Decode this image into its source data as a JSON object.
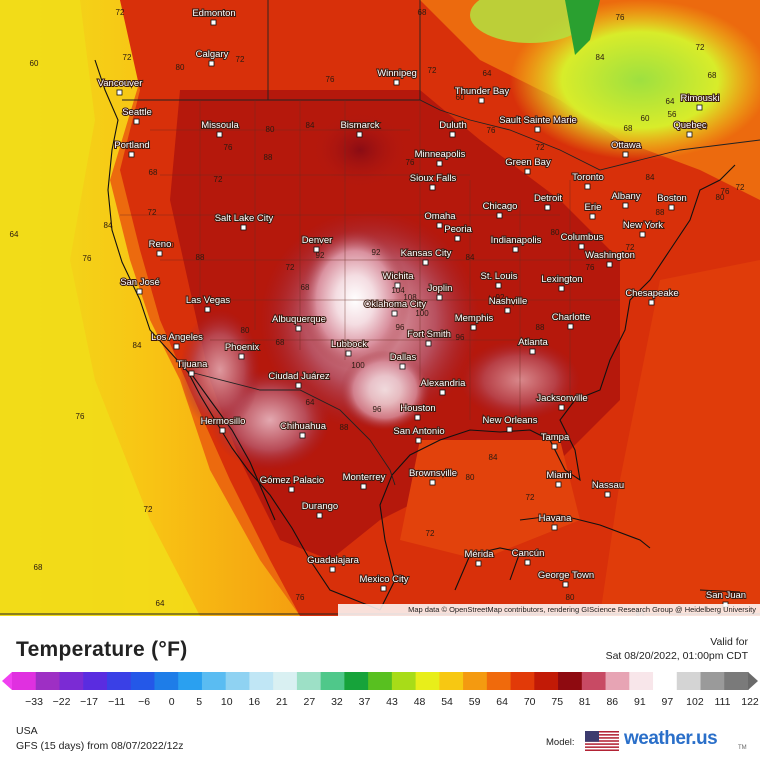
{
  "map": {
    "attribution": "Map data © OpenStreetMap contributors, rendering GIScience Research Group @ Heidelberg University",
    "cities": [
      {
        "name": "Edmonton"
      },
      {
        "name": "Calgary"
      },
      {
        "name": "Vancouver"
      },
      {
        "name": "Seattle"
      },
      {
        "name": "Missoula"
      },
      {
        "name": "Portland"
      },
      {
        "name": "Winnipeg"
      },
      {
        "name": "Thunder Bay"
      },
      {
        "name": "Bismarck"
      },
      {
        "name": "Duluth"
      },
      {
        "name": "Sault Sainte Marie"
      },
      {
        "name": "Rimouski"
      },
      {
        "name": "Quebec"
      },
      {
        "name": "Ottawa"
      },
      {
        "name": "Minneapolis"
      },
      {
        "name": "Green Bay"
      },
      {
        "name": "Toronto"
      },
      {
        "name": "Sioux Falls"
      },
      {
        "name": "Detroit"
      },
      {
        "name": "Albany"
      },
      {
        "name": "Boston"
      },
      {
        "name": "Salt Lake City"
      },
      {
        "name": "Chicago"
      },
      {
        "name": "Erie"
      },
      {
        "name": "Omaha"
      },
      {
        "name": "Reno"
      },
      {
        "name": "Denver"
      },
      {
        "name": "Peoria"
      },
      {
        "name": "Indianapolis"
      },
      {
        "name": "Columbus"
      },
      {
        "name": "New York"
      },
      {
        "name": "Kansas City"
      },
      {
        "name": "Wichita"
      },
      {
        "name": "St. Louis"
      },
      {
        "name": "Washington"
      },
      {
        "name": "San José"
      },
      {
        "name": "Joplin"
      },
      {
        "name": "Lexington"
      },
      {
        "name": "Las Vegas"
      },
      {
        "name": "Oklahoma City"
      },
      {
        "name": "Nashville"
      },
      {
        "name": "Chesapeake"
      },
      {
        "name": "Albuquerque"
      },
      {
        "name": "Memphis"
      },
      {
        "name": "Charlotte"
      },
      {
        "name": "Los Angeles"
      },
      {
        "name": "Fort Smith"
      },
      {
        "name": "Phoenix"
      },
      {
        "name": "Lubbock"
      },
      {
        "name": "Atlanta"
      },
      {
        "name": "Dallas"
      },
      {
        "name": "Tijuana"
      },
      {
        "name": "Ciudad Juárez"
      },
      {
        "name": "Alexandria"
      },
      {
        "name": "Jacksonville"
      },
      {
        "name": "Houston"
      },
      {
        "name": "Hermosillo"
      },
      {
        "name": "Chihuahua"
      },
      {
        "name": "San Antonio"
      },
      {
        "name": "New Orleans"
      },
      {
        "name": "Tampa"
      },
      {
        "name": "Brownsville"
      },
      {
        "name": "Miami"
      },
      {
        "name": "Monterrey"
      },
      {
        "name": "Nassau"
      },
      {
        "name": "Gómez Palacio"
      },
      {
        "name": "Durango"
      },
      {
        "name": "Havana"
      },
      {
        "name": "Mérida"
      },
      {
        "name": "Cancún"
      },
      {
        "name": "Guadalajara"
      },
      {
        "name": "George Town"
      },
      {
        "name": "Mexico City"
      },
      {
        "name": "San Juan"
      }
    ],
    "iso_labels": [
      "72",
      "68",
      "60",
      "72",
      "80",
      "72",
      "64",
      "72",
      "60",
      "76",
      "68",
      "76",
      "84",
      "80",
      "88",
      "76",
      "72",
      "68",
      "64",
      "72",
      "76",
      "84",
      "80",
      "88",
      "72",
      "68",
      "92",
      "100",
      "96",
      "104",
      "108",
      "100",
      "96",
      "88",
      "84",
      "92",
      "76",
      "80",
      "84",
      "72",
      "68",
      "64",
      "76",
      "72",
      "80",
      "84",
      "96",
      "92",
      "88",
      "84",
      "80",
      "76",
      "72",
      "84",
      "88",
      "80",
      "76",
      "72",
      "64",
      "60",
      "56",
      "64",
      "68",
      "72",
      "76",
      "84",
      "80",
      "72",
      "76",
      "68",
      "64",
      "72"
    ]
  },
  "legend": {
    "title": "Temperature (°F)",
    "valid_label": "Valid for",
    "valid_time": "Sat 08/20/2022, 01:00pm CDT",
    "ticks": [
      "−33",
      "−22",
      "−17",
      "−11",
      "−6",
      "0",
      "5",
      "10",
      "16",
      "21",
      "27",
      "32",
      "37",
      "43",
      "48",
      "54",
      "59",
      "64",
      "70",
      "75",
      "81",
      "86",
      "91",
      "97",
      "102",
      "111",
      "122"
    ],
    "colors": [
      "#e030e0",
      "#9e2fc4",
      "#7b2bd4",
      "#5a2ce0",
      "#3a40e6",
      "#2458e8",
      "#1e7de8",
      "#2aa0f0",
      "#5abcf2",
      "#8fd2f2",
      "#c0e6f5",
      "#d9f0f2",
      "#9de0c6",
      "#4fc88a",
      "#16a33a",
      "#58c020",
      "#a8dc18",
      "#e8ee1a",
      "#f7c812",
      "#f49a10",
      "#f06a0c",
      "#e23a08",
      "#c21a06",
      "#8e0a10",
      "#c84a64",
      "#e7a4b4",
      "#f8e6ea",
      "#ffffff",
      "#d4d4d4",
      "#9a9a9a",
      "#7a7a7a"
    ]
  },
  "footer": {
    "region": "USA",
    "model_info": "GFS (15 days) from 08/07/2022/12z",
    "model_label": "Model:",
    "brand": "weather.us",
    "brand_tm": "TM"
  }
}
